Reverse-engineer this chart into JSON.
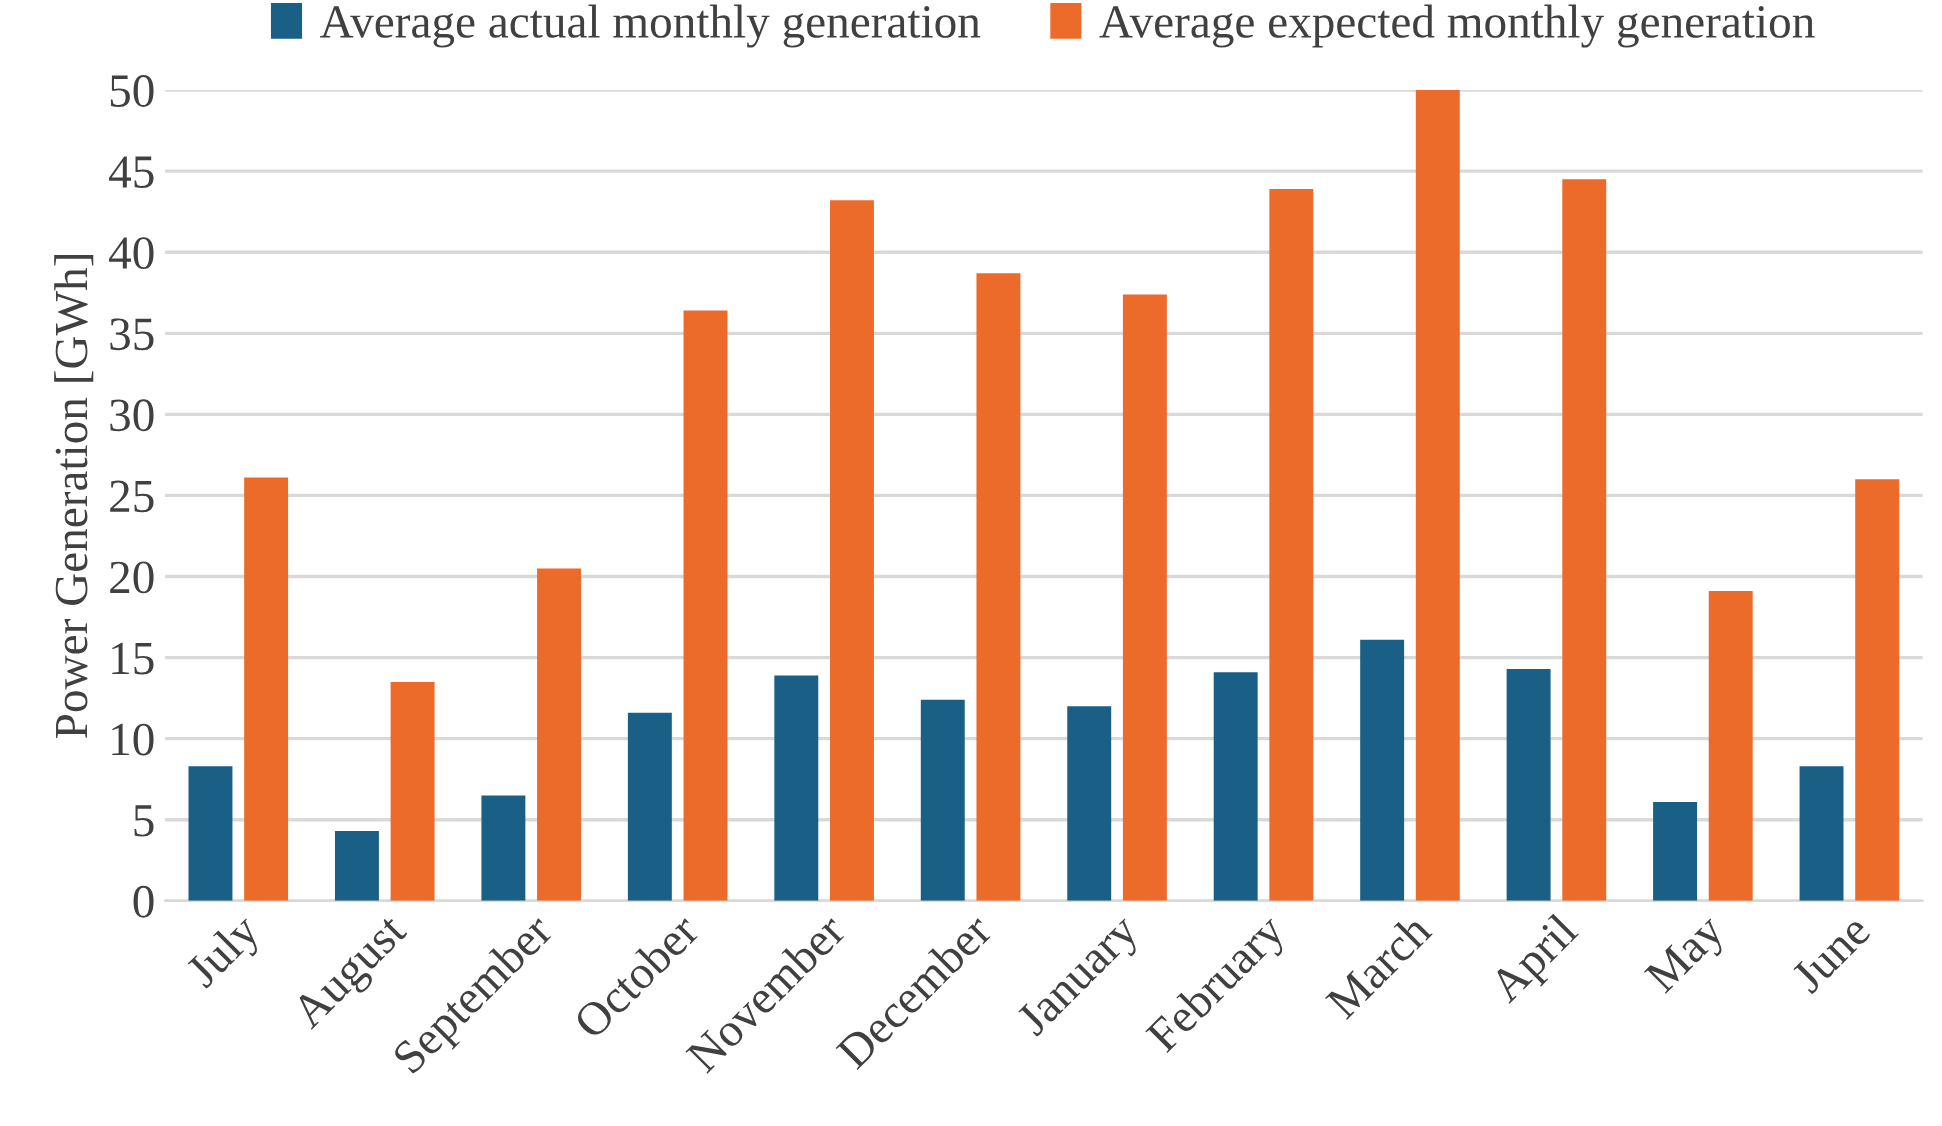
{
  "chart_data": {
    "type": "bar",
    "ylabel": "Power Generation [GWh]",
    "categories": [
      "July",
      "August",
      "September",
      "October",
      "November",
      "December",
      "January",
      "February",
      "March",
      "April",
      "May",
      "June"
    ],
    "series": [
      {
        "name": "Average actual monthly generation",
        "color": "#1a5f85",
        "values": [
          8.3,
          4.3,
          6.5,
          11.6,
          13.9,
          12.4,
          12.0,
          14.1,
          16.1,
          14.3,
          6.1,
          8.3
        ]
      },
      {
        "name": "Average expected monthly generation",
        "color": "#ec6a2a",
        "values": [
          26.1,
          13.5,
          20.5,
          36.4,
          43.2,
          38.7,
          37.4,
          43.9,
          50.0,
          44.5,
          19.1,
          26.0
        ]
      }
    ],
    "ylim": [
      0,
      50
    ],
    "yticks": [
      0,
      5,
      10,
      15,
      20,
      25,
      30,
      35,
      40,
      45,
      50
    ],
    "grid": "y",
    "legend": "top"
  }
}
